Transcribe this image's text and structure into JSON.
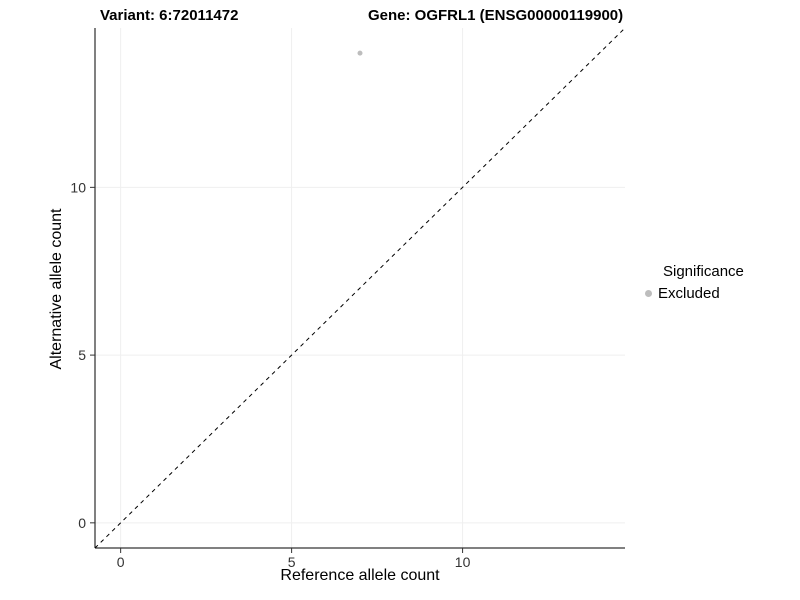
{
  "header": {
    "variant_title": "Variant: 6:72011472",
    "gene_title": "Gene: OGFRL1 (ENSG00000119900)"
  },
  "chart_data": {
    "type": "scatter",
    "title_left": "Variant: 6:72011472",
    "title_right": "Gene: OGFRL1 (ENSG00000119900)",
    "xlabel": "Reference allele count",
    "ylabel": "Alternative allele count",
    "xlim": [
      -0.75,
      14.75
    ],
    "ylim": [
      -0.75,
      14.75
    ],
    "xticks": [
      0,
      5,
      10
    ],
    "yticks": [
      0,
      5,
      10
    ],
    "grid": true,
    "grid_color": "#efefef",
    "identity_line": {
      "style": "dashed",
      "slope": 1,
      "intercept": 0,
      "color": "#000000"
    },
    "points": [
      {
        "x": 7,
        "y": 14,
        "series": "Excluded"
      }
    ],
    "series": [
      {
        "name": "Excluded",
        "color": "#bdbdbd"
      }
    ],
    "legend": {
      "title": "Significance",
      "position": "right",
      "entries": [
        {
          "label": "Excluded",
          "color": "#bdbdbd"
        }
      ]
    }
  }
}
